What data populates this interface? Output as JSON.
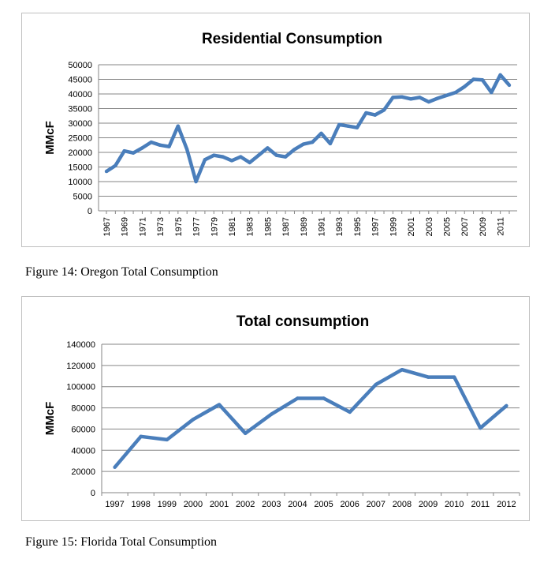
{
  "figures": [
    {
      "caption": "Figure 14: Oregon Total Consumption"
    },
    {
      "caption": "Figure 15: Florida Total Consumption"
    }
  ],
  "chart_data": [
    {
      "type": "line",
      "title": "Residential Consumption",
      "xlabel": "",
      "ylabel": "MMcF",
      "ylim": [
        0,
        50000
      ],
      "yticks": [
        0,
        5000,
        10000,
        15000,
        20000,
        25000,
        30000,
        35000,
        40000,
        45000,
        50000
      ],
      "x_tick_labels": [
        "1967",
        "1969",
        "1971",
        "1973",
        "1975",
        "1977",
        "1979",
        "1981",
        "1983",
        "1985",
        "1987",
        "1989",
        "1991",
        "1993",
        "1995",
        "1997",
        "1999",
        "2001",
        "2003",
        "2005",
        "2007",
        "2009",
        "2011"
      ],
      "x_tick_rotation": -90,
      "grid": true,
      "legend": false,
      "line_color": "#4a7ebb",
      "x": [
        1967,
        1968,
        1969,
        1970,
        1971,
        1972,
        1973,
        1974,
        1975,
        1976,
        1977,
        1978,
        1979,
        1980,
        1981,
        1982,
        1983,
        1984,
        1985,
        1986,
        1987,
        1988,
        1989,
        1990,
        1991,
        1992,
        1993,
        1994,
        1995,
        1996,
        1997,
        1998,
        1999,
        2000,
        2001,
        2002,
        2003,
        2004,
        2005,
        2006,
        2007,
        2008,
        2009,
        2010,
        2011,
        2012
      ],
      "series": [
        {
          "values": [
            13500,
            15500,
            20500,
            19800,
            21500,
            23500,
            22500,
            22000,
            29000,
            21000,
            10000,
            17500,
            19000,
            18500,
            17200,
            18500,
            16500,
            19000,
            21500,
            19000,
            18500,
            21000,
            22800,
            23500,
            26500,
            23000,
            29500,
            29000,
            28500,
            33500,
            32800,
            34500,
            38800,
            39000,
            38300,
            38800,
            37300,
            38500,
            39500,
            40500,
            42500,
            45000,
            44800,
            40500,
            46500,
            43000
          ]
        }
      ]
    },
    {
      "type": "line",
      "title": "Total consumption",
      "xlabel": "",
      "ylabel": "MMcF",
      "ylim": [
        0,
        140000
      ],
      "yticks": [
        0,
        20000,
        40000,
        60000,
        80000,
        100000,
        120000,
        140000
      ],
      "categories": [
        "1997",
        "1998",
        "1999",
        "2000",
        "2001",
        "2002",
        "2003",
        "2004",
        "2005",
        "2006",
        "2007",
        "2008",
        "2009",
        "2010",
        "2011",
        "2012"
      ],
      "grid": true,
      "legend": false,
      "line_color": "#4a7ebb",
      "series": [
        {
          "values": [
            24000,
            53000,
            50000,
            69000,
            83000,
            56000,
            74000,
            89000,
            89000,
            76000,
            102000,
            116000,
            109000,
            109000,
            61000,
            82000
          ]
        }
      ]
    }
  ]
}
